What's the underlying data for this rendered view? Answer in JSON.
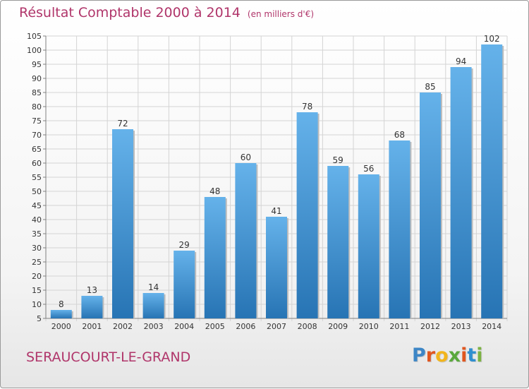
{
  "header": {
    "title": "Résultat Comptable 2000 à 2014",
    "subtitle": "(en milliers d'€)"
  },
  "footer": {
    "location": "SERAUCOURT-LE-GRAND",
    "logo_letters": [
      "P",
      "r",
      "o",
      "x",
      "i",
      "t",
      "i"
    ],
    "logo_colors": [
      "#3d86c6",
      "#e0561f",
      "#f2b51c",
      "#5aa83c",
      "#e0561f",
      "#2f8fd0",
      "#7cb342"
    ]
  },
  "colors": {
    "title": "#b0356a",
    "bar_top": "#65b2ea",
    "bar_bottom": "#2774b4",
    "grid": "#d4d4d4",
    "axis": "#808080"
  },
  "chart_data": {
    "type": "bar",
    "title": "Résultat Comptable 2000 à 2014",
    "subtitle": "(en milliers d'€)",
    "xlabel": "",
    "ylabel": "",
    "categories": [
      "2000",
      "2001",
      "2002",
      "2003",
      "2004",
      "2005",
      "2006",
      "2007",
      "2008",
      "2009",
      "2010",
      "2011",
      "2012",
      "2013",
      "2014"
    ],
    "values": [
      8,
      13,
      72,
      14,
      29,
      48,
      60,
      41,
      78,
      59,
      56,
      68,
      85,
      94,
      102
    ],
    "value_labels": [
      "8",
      "13",
      "72",
      "14",
      "29",
      "48",
      "60",
      "41",
      "78",
      "59",
      "56",
      "68",
      "85",
      "94",
      "102"
    ],
    "ylim": [
      5,
      105
    ],
    "yticks": [
      "5",
      "10",
      "15",
      "20",
      "25",
      "30",
      "35",
      "40",
      "45",
      "50",
      "55",
      "60",
      "65",
      "70",
      "75",
      "80",
      "85",
      "90",
      "95",
      "100",
      "105"
    ],
    "grid": true,
    "legend": "none"
  }
}
